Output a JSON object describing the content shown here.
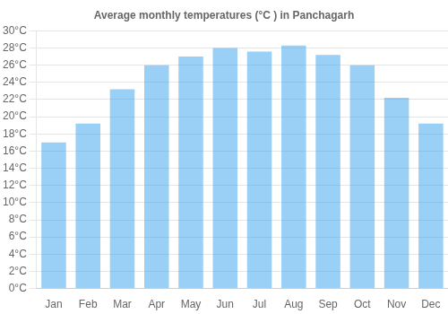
{
  "chart_data": {
    "type": "bar",
    "title": "Average monthly temperatures (°C ) in Panchagarh",
    "categories": [
      "Jan",
      "Feb",
      "Mar",
      "Apr",
      "May",
      "Jun",
      "Jul",
      "Aug",
      "Sep",
      "Oct",
      "Nov",
      "Dec"
    ],
    "values": [
      17.0,
      19.2,
      23.2,
      26.0,
      27.0,
      28.0,
      27.6,
      28.3,
      27.2,
      26.0,
      22.2,
      19.2
    ],
    "ylim": [
      0,
      30
    ],
    "yticks": [
      {
        "value": 0,
        "label": "0°C"
      },
      {
        "value": 2,
        "label": "2°C"
      },
      {
        "value": 4,
        "label": "4°C"
      },
      {
        "value": 6,
        "label": "6°C"
      },
      {
        "value": 8,
        "label": "8°C"
      },
      {
        "value": 10,
        "label": "10°C"
      },
      {
        "value": 12,
        "label": "12°C"
      },
      {
        "value": 14,
        "label": "14°C"
      },
      {
        "value": 16,
        "label": "16°C"
      },
      {
        "value": 18,
        "label": "18°C"
      },
      {
        "value": 20,
        "label": "20°C"
      },
      {
        "value": 22,
        "label": "22°C"
      },
      {
        "value": 24,
        "label": "24°C"
      },
      {
        "value": 26,
        "label": "26°C"
      },
      {
        "value": 28,
        "label": "28°C"
      },
      {
        "value": 30,
        "label": "30°C"
      }
    ],
    "grid": true
  }
}
